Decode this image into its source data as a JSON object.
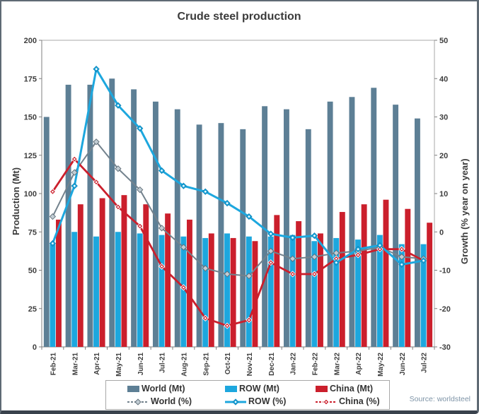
{
  "title": "Crude steel production",
  "source": "Source: worldsteel",
  "colors": {
    "world_bar": "#5d7f95",
    "row_bar": "#1da7de",
    "china_bar": "#cb1f2c",
    "world_line": "#73828d",
    "row_line": "#1da7de",
    "china_line": "#cb1f2c",
    "axis_text": "#3e3e3e",
    "plot_frame": "#a9a9a9",
    "axis_line": "#7f7f7f",
    "source_text": "#7e94a7"
  },
  "chart_data": {
    "type": "bar+line combo",
    "title": "Crude steel production",
    "grid": false,
    "legend_position": "bottom",
    "categories": [
      "Feb-21",
      "Mar-21",
      "Apr-21",
      "May-21",
      "Jun-21",
      "Jul-21",
      "Aug-21",
      "Sep-21",
      "Oct-21",
      "Nov-21",
      "Dec-21",
      "Jan-22",
      "Feb-22",
      "Mar-22",
      "Apr-22",
      "May-22",
      "Jun-22",
      "Jul-22"
    ],
    "left_axis": {
      "label": "Production (Mt)",
      "min": 0,
      "max": 200,
      "step": 25,
      "ticks": [
        0,
        25,
        50,
        75,
        100,
        125,
        150,
        175,
        200
      ]
    },
    "right_axis": {
      "label": "Growth (% year on year)",
      "min": -30,
      "max": 50,
      "step": 10,
      "ticks": [
        -30,
        -20,
        -10,
        0,
        10,
        20,
        30,
        40,
        50
      ]
    },
    "series": [
      {
        "name": "World (Mt)",
        "type": "bar",
        "axis": "left",
        "color": "#5d7f95",
        "values": [
          150,
          171,
          171,
          175,
          168,
          160,
          155,
          145,
          146,
          142,
          157,
          155,
          142,
          160,
          163,
          169,
          158,
          149
        ]
      },
      {
        "name": "ROW (Mt)",
        "type": "bar",
        "axis": "left",
        "color": "#1da7de",
        "values": [
          67,
          75,
          72,
          75,
          74,
          73,
          72,
          71,
          74,
          72,
          72,
          73,
          69,
          71,
          70,
          73,
          67,
          67
        ]
      },
      {
        "name": "China (Mt)",
        "type": "bar",
        "axis": "left",
        "color": "#cb1f2c",
        "values": [
          83,
          93,
          97,
          99,
          93,
          87,
          83,
          74,
          71,
          69,
          86,
          82,
          74,
          88,
          93,
          96,
          90,
          81
        ]
      },
      {
        "name": "World (%)",
        "type": "line",
        "axis": "right",
        "color": "#73828d",
        "width": 2,
        "z": 1,
        "marker_fill": "#c2cdd4",
        "marker_stroke": "#5d6b75",
        "marker_dot": false,
        "values": [
          4,
          15.5,
          23.5,
          16.5,
          11,
          1,
          -4,
          -9.5,
          -11,
          -11.5,
          -5,
          -7,
          -6.5,
          -5.5,
          -5,
          -4,
          -6.5,
          -7
        ]
      },
      {
        "name": "China (%)",
        "type": "line",
        "axis": "right",
        "color": "#cb1f2c",
        "width": 2.8,
        "z": 2,
        "marker_fill": "#cb1f2c",
        "marker_stroke": "#ffffff",
        "marker_dot": true,
        "values": [
          10.5,
          19,
          13,
          6.5,
          1.5,
          -9,
          -14.5,
          -22.5,
          -24.5,
          -23,
          -8,
          -11,
          -11,
          -7,
          -6,
          -4.5,
          -4.5,
          -7.5
        ]
      },
      {
        "name": "ROW (%)",
        "type": "line",
        "axis": "right",
        "color": "#1da7de",
        "width": 3,
        "z": 3,
        "marker_fill": "#1da7de",
        "marker_stroke": "#0e85b8",
        "marker_dot": true,
        "values": [
          -3,
          12,
          42.5,
          33,
          27,
          16,
          12,
          10.5,
          7.5,
          4,
          -0.5,
          -1.5,
          -1,
          -8,
          -4.5,
          -3.5,
          -8.5,
          -7.5
        ]
      }
    ]
  },
  "legend": {
    "items": [
      {
        "label": "World (Mt)",
        "glyph": "bar",
        "color": "#5d7f95"
      },
      {
        "label": "ROW (Mt)",
        "glyph": "bar",
        "color": "#1da7de"
      },
      {
        "label": "China (Mt)",
        "glyph": "bar",
        "color": "#cb1f2c"
      },
      {
        "label": "World (%)",
        "glyph": "line",
        "color": "#73828d",
        "dash": "3 2",
        "marker_fill": "#c2cdd4",
        "marker_stroke": "#5d6b75",
        "marker_dot": false
      },
      {
        "label": "ROW (%)",
        "glyph": "line",
        "color": "#1da7de",
        "dash": "",
        "marker_fill": "#1da7de",
        "marker_stroke": "#0e85b8",
        "marker_dot": true
      },
      {
        "label": "China (%)",
        "glyph": "line",
        "color": "#cb1f2c",
        "dash": "3 2",
        "marker_fill": "#cb1f2c",
        "marker_stroke": "#ffffff",
        "marker_dot": true
      }
    ]
  }
}
